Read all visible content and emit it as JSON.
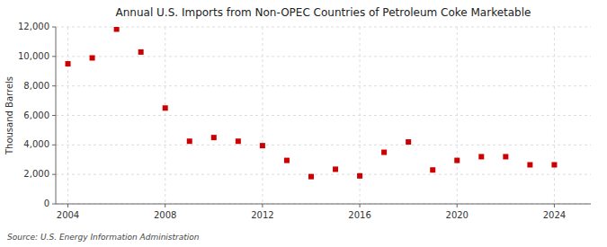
{
  "chart_data": {
    "type": "scatter",
    "title": "Annual U.S. Imports from Non-OPEC Countries of Petroleum Coke Marketable",
    "y_label": "Thousand Barrels",
    "annotations": [
      "Source: U.S. Energy Information Administration"
    ],
    "x": [
      2004,
      2005,
      2006,
      2007,
      2008,
      2009,
      2010,
      2011,
      2012,
      2013,
      2014,
      2015,
      2016,
      2017,
      2018,
      2019,
      2020,
      2021,
      2022,
      2023,
      2024
    ],
    "values": [
      9500,
      9900,
      11850,
      10300,
      6500,
      4250,
      4500,
      4250,
      3950,
      2950,
      1850,
      2350,
      1900,
      3500,
      4200,
      2300,
      2950,
      3200,
      3200,
      2650,
      2650
    ],
    "color": "#cc0000",
    "marker": "square",
    "xlim": [
      2003.5,
      2025.5
    ],
    "ylim": [
      0,
      12000
    ],
    "xticks": [
      2004,
      2008,
      2012,
      2016,
      2020,
      2024
    ],
    "yticks": [
      0,
      {
        "value": 2000,
        "label": "2,000"
      },
      {
        "value": 4000,
        "label": "4,000"
      },
      {
        "value": 6000,
        "label": "6,000"
      },
      {
        "value": 8000,
        "label": "8,000"
      },
      {
        "value": 10000,
        "label": "10,000"
      },
      {
        "value": 12000,
        "label": "12,000"
      }
    ],
    "grid": true
  }
}
